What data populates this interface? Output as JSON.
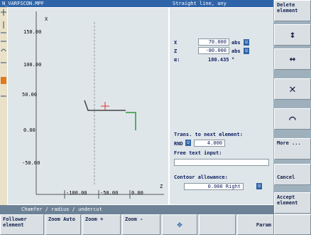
{
  "title_bar": {
    "program": "N_VARFSCON.MPF",
    "mode": "Straight line, any"
  },
  "graph": {
    "axis_x": "X",
    "axis_z": "Z",
    "x_labels": [
      "150.00",
      "100.00",
      "50.00",
      "0.00",
      "-50.00"
    ],
    "z_labels": [
      "-100.00",
      "-50.00",
      "0.00"
    ]
  },
  "form": {
    "fields": [
      {
        "label": "X",
        "value": "70.000",
        "unit": "abs"
      },
      {
        "label": "Z",
        "value": "-80.000",
        "unit": "abs"
      },
      {
        "label": "α:",
        "value": "180.435",
        "unit": "°"
      }
    ],
    "transition_label": "Trans. to next element:",
    "transition_type": "RND",
    "transition_value": "4.000",
    "free_text_label": "Free text input:",
    "allowance_label": "Contour allowance:",
    "allowance_value": "0.000 Right"
  },
  "status": "Chamfer / radius / undercut",
  "vertical_softkeys": [
    "Delete element",
    "More ...",
    "Cancel",
    "Accept element"
  ],
  "horizontal_softkeys": [
    "Follower element",
    "Zoom Auto",
    "Zoom +",
    "Zoom -",
    "Param"
  ]
}
